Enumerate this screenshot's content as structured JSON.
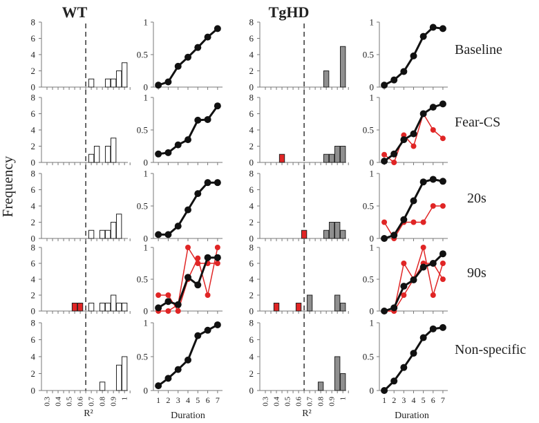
{
  "colors": {
    "red": "#e02525",
    "black": "#111111",
    "gray_bar": "#8f8f8f",
    "white_bar": "#ffffff",
    "axis": "#777777"
  },
  "chart_data": {
    "type": "bar",
    "headers": {
      "wt": "WT",
      "tghd": "TgHD"
    },
    "row_labels": [
      "Baseline",
      "Fear-CS",
      "20s",
      "90s",
      "Non-specific"
    ],
    "ylabel": "Frequency",
    "xlabel_hist": "R²",
    "xlabel_line": "Duration",
    "hist_x_ticks": [
      "0.3",
      "0.4",
      "0.5",
      "0.6",
      "0.7",
      "0.8",
      "0.9",
      "1"
    ],
    "hist_y_ticks": [
      "0",
      "2",
      "4",
      "6",
      "8"
    ],
    "hist_ylim": [
      0,
      8
    ],
    "hist_xlim": [
      0.25,
      1.03
    ],
    "threshold_r2": 0.65,
    "line_x_ticks": [
      "1",
      "2",
      "3",
      "4",
      "5",
      "6",
      "7"
    ],
    "line_y_ticks": [
      "0",
      "0.5",
      "1"
    ],
    "line_ylim": [
      0,
      1
    ],
    "line_x": [
      1,
      2,
      3,
      4,
      5,
      6,
      7
    ],
    "wt_hist": [
      [
        {
          "r2": 0.7,
          "count": 1,
          "color": "white"
        },
        {
          "r2": 0.85,
          "count": 1,
          "color": "white"
        },
        {
          "r2": 0.9,
          "count": 1,
          "color": "white"
        },
        {
          "r2": 0.95,
          "count": 2,
          "color": "white"
        },
        {
          "r2": 1.0,
          "count": 3,
          "color": "white"
        }
      ],
      [
        {
          "r2": 0.7,
          "count": 1,
          "color": "white"
        },
        {
          "r2": 0.75,
          "count": 2,
          "color": "white"
        },
        {
          "r2": 0.85,
          "count": 2,
          "color": "white"
        },
        {
          "r2": 0.9,
          "count": 3,
          "color": "white"
        }
      ],
      [
        {
          "r2": 0.7,
          "count": 1,
          "color": "white"
        },
        {
          "r2": 0.8,
          "count": 1,
          "color": "white"
        },
        {
          "r2": 0.85,
          "count": 1,
          "color": "white"
        },
        {
          "r2": 0.9,
          "count": 2,
          "color": "white"
        },
        {
          "r2": 0.95,
          "count": 3,
          "color": "white"
        }
      ],
      [
        {
          "r2": 0.55,
          "count": 1,
          "color": "red"
        },
        {
          "r2": 0.6,
          "count": 1,
          "color": "red"
        },
        {
          "r2": 0.7,
          "count": 1,
          "color": "white"
        },
        {
          "r2": 0.8,
          "count": 1,
          "color": "white"
        },
        {
          "r2": 0.85,
          "count": 1,
          "color": "white"
        },
        {
          "r2": 0.9,
          "count": 2,
          "color": "white"
        },
        {
          "r2": 0.95,
          "count": 1,
          "color": "white"
        },
        {
          "r2": 1.0,
          "count": 1,
          "color": "white"
        }
      ],
      [
        {
          "r2": 0.8,
          "count": 1,
          "color": "white"
        },
        {
          "r2": 0.95,
          "count": 3,
          "color": "white"
        },
        {
          "r2": 1.0,
          "count": 4,
          "color": "white"
        }
      ]
    ],
    "tghd_hist": [
      [
        {
          "r2": 0.85,
          "count": 2,
          "color": "gray"
        },
        {
          "r2": 1.0,
          "count": 5,
          "color": "gray"
        }
      ],
      [
        {
          "r2": 0.45,
          "count": 1,
          "color": "red"
        },
        {
          "r2": 0.85,
          "count": 1,
          "color": "gray"
        },
        {
          "r2": 0.9,
          "count": 1,
          "color": "gray"
        },
        {
          "r2": 0.95,
          "count": 2,
          "color": "gray"
        },
        {
          "r2": 1.0,
          "count": 2,
          "color": "gray"
        }
      ],
      [
        {
          "r2": 0.65,
          "count": 1,
          "color": "red"
        },
        {
          "r2": 0.85,
          "count": 1,
          "color": "gray"
        },
        {
          "r2": 0.9,
          "count": 2,
          "color": "gray"
        },
        {
          "r2": 0.95,
          "count": 2,
          "color": "gray"
        },
        {
          "r2": 1.0,
          "count": 1,
          "color": "gray"
        }
      ],
      [
        {
          "r2": 0.4,
          "count": 1,
          "color": "red"
        },
        {
          "r2": 0.6,
          "count": 1,
          "color": "red"
        },
        {
          "r2": 0.7,
          "count": 2,
          "color": "gray"
        },
        {
          "r2": 0.95,
          "count": 2,
          "color": "gray"
        },
        {
          "r2": 1.0,
          "count": 1,
          "color": "gray"
        }
      ],
      [
        {
          "r2": 0.8,
          "count": 1,
          "color": "gray"
        },
        {
          "r2": 0.95,
          "count": 4,
          "color": "gray"
        },
        {
          "r2": 1.0,
          "count": 2,
          "color": "gray"
        }
      ]
    ],
    "wt_lines": [
      [
        {
          "name": "mean",
          "color": "black",
          "values": [
            0.03,
            0.08,
            0.32,
            0.46,
            0.61,
            0.77,
            0.9
          ]
        }
      ],
      [
        {
          "name": "mean",
          "color": "black",
          "values": [
            0.13,
            0.15,
            0.27,
            0.35,
            0.65,
            0.66,
            0.87
          ]
        }
      ],
      [
        {
          "name": "mean",
          "color": "black",
          "values": [
            0.06,
            0.06,
            0.19,
            0.44,
            0.69,
            0.86,
            0.86
          ]
        }
      ],
      [
        {
          "name": "red-1",
          "color": "red",
          "values": [
            0.25,
            0.25,
            0.0,
            0.5,
            0.83,
            0.25,
            1.0
          ]
        },
        {
          "name": "red-2",
          "color": "red",
          "values": [
            0.0,
            0.0,
            0.1,
            1.0,
            0.75,
            0.75,
            0.75
          ]
        },
        {
          "name": "mean",
          "color": "black",
          "values": [
            0.05,
            0.15,
            0.1,
            0.53,
            0.41,
            0.84,
            0.84
          ]
        }
      ],
      [
        {
          "name": "mean",
          "color": "black",
          "values": [
            0.07,
            0.18,
            0.31,
            0.45,
            0.81,
            0.89,
            0.97
          ]
        }
      ]
    ],
    "tghd_lines": [
      [
        {
          "name": "mean",
          "color": "black",
          "values": [
            0.03,
            0.11,
            0.24,
            0.48,
            0.78,
            0.92,
            0.9
          ]
        }
      ],
      [
        {
          "name": "red-1",
          "color": "red",
          "values": [
            0.12,
            0.0,
            0.42,
            0.25,
            0.75,
            0.5,
            0.37
          ]
        },
        {
          "name": "mean",
          "color": "black",
          "values": [
            0.02,
            0.13,
            0.35,
            0.44,
            0.75,
            0.85,
            0.9
          ]
        }
      ],
      [
        {
          "name": "red-1",
          "color": "red",
          "values": [
            0.25,
            0.0,
            0.25,
            0.25,
            0.25,
            0.5,
            0.5
          ]
        },
        {
          "name": "mean",
          "color": "black",
          "values": [
            0.0,
            0.05,
            0.29,
            0.58,
            0.87,
            0.91,
            0.88
          ]
        }
      ],
      [
        {
          "name": "red-1",
          "color": "red",
          "values": [
            0.0,
            0.0,
            0.75,
            0.5,
            1.0,
            0.25,
            0.75
          ]
        },
        {
          "name": "red-2",
          "color": "red",
          "values": [
            0.0,
            0.0,
            0.25,
            0.5,
            0.75,
            0.75,
            0.5
          ]
        },
        {
          "name": "mean",
          "color": "black",
          "values": [
            0.0,
            0.05,
            0.39,
            0.49,
            0.69,
            0.75,
            0.9
          ]
        }
      ],
      [
        {
          "name": "mean",
          "color": "black",
          "values": [
            0.0,
            0.14,
            0.34,
            0.55,
            0.78,
            0.91,
            0.93
          ]
        }
      ]
    ]
  }
}
